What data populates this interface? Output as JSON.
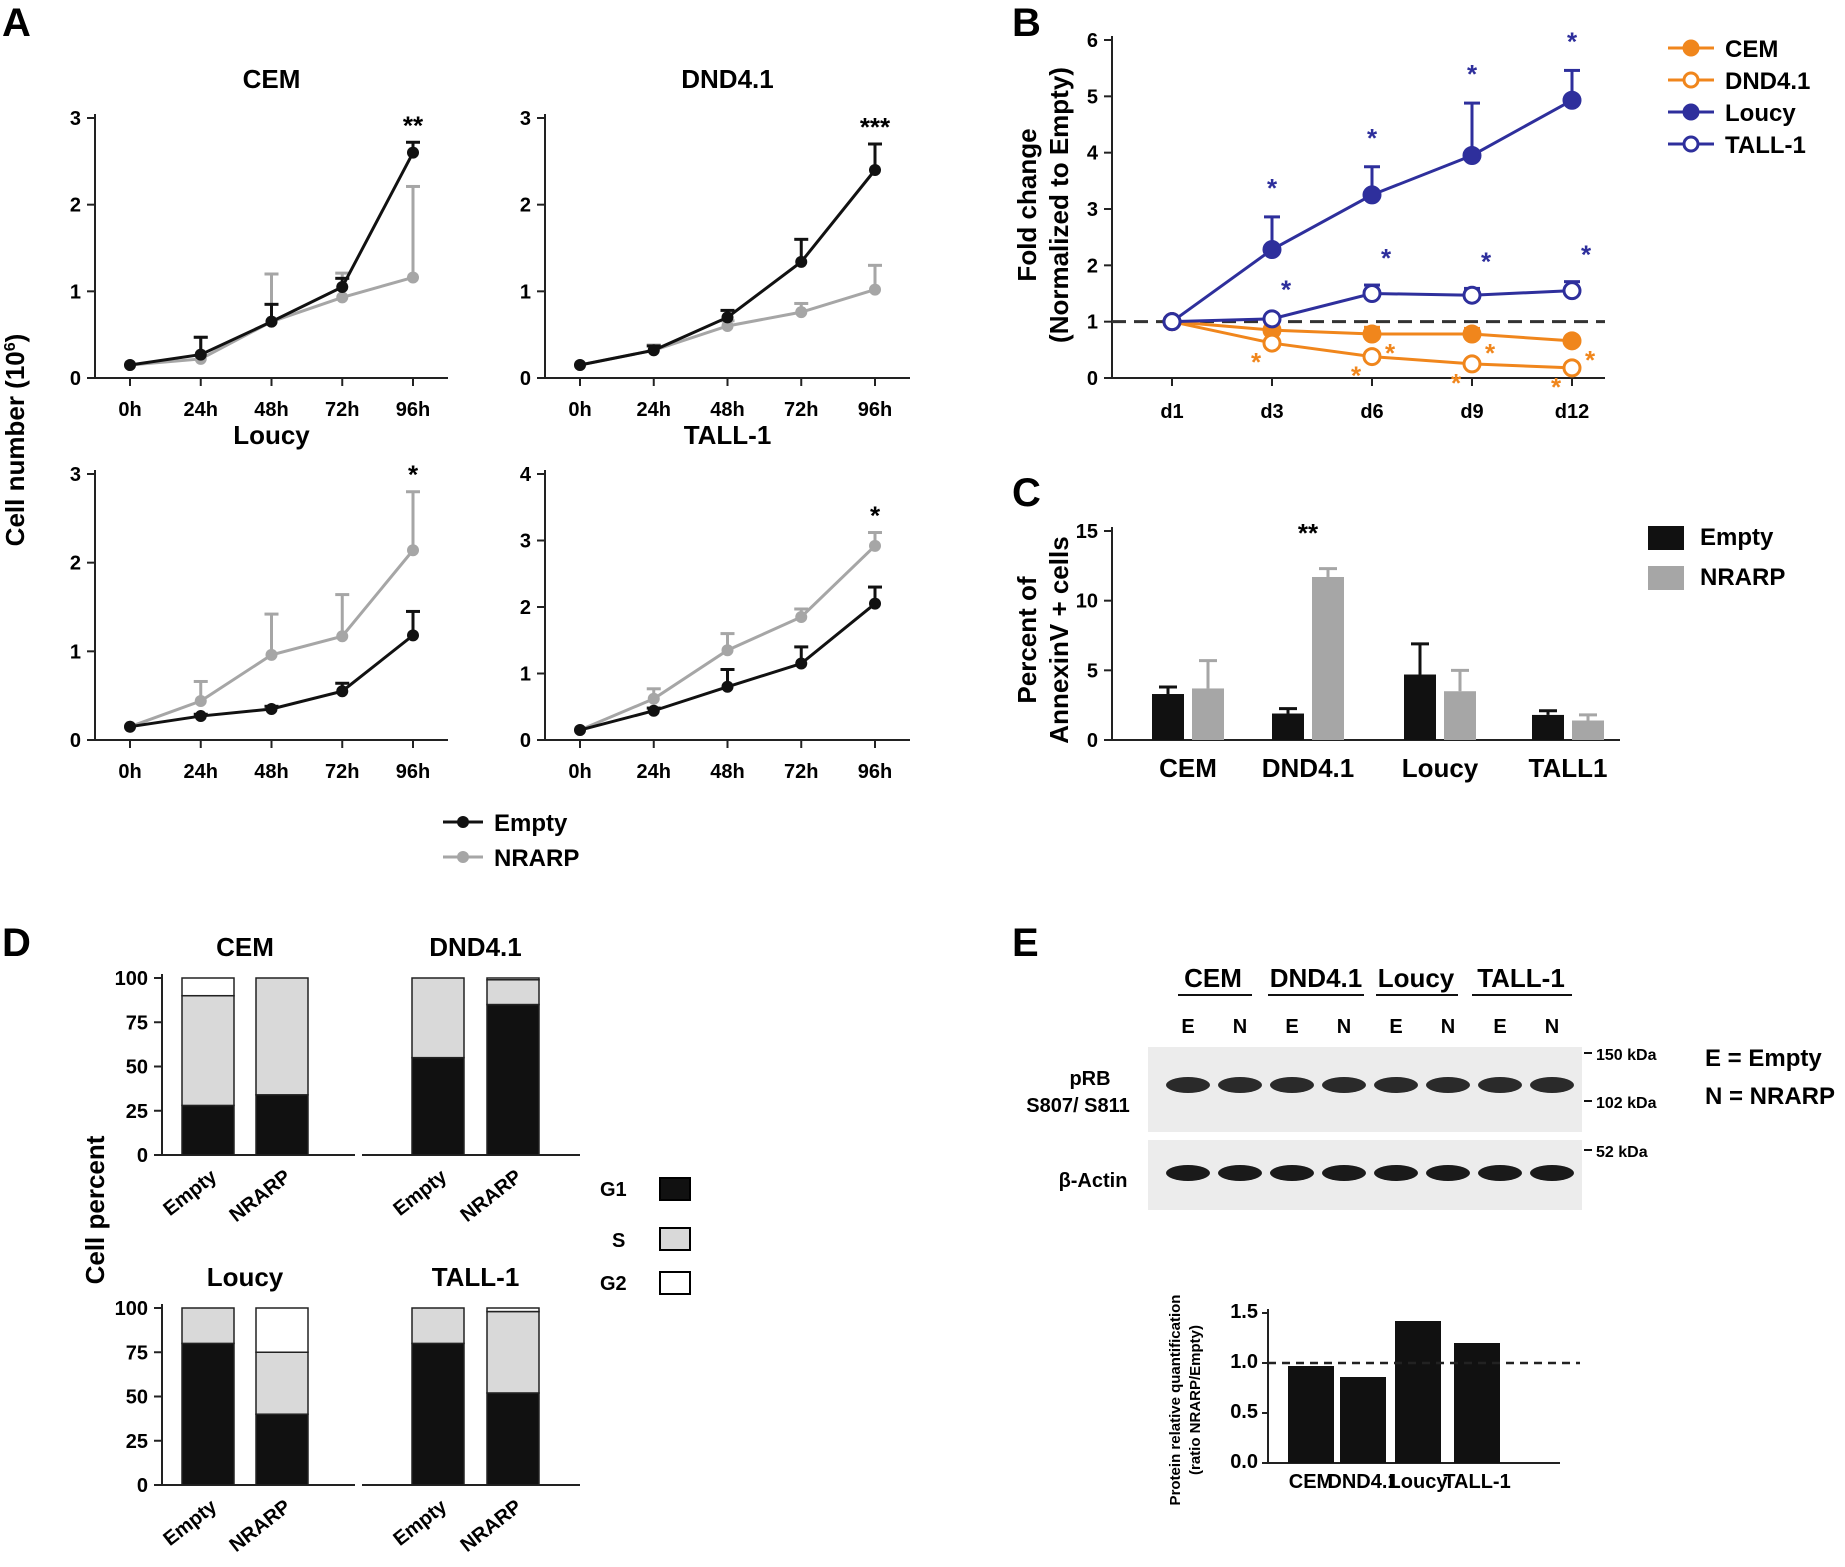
{
  "colors": {
    "empty": "#111111",
    "nrarp": "#a6a6a6",
    "orange": "#f0861c",
    "blue": "#2e2f9c",
    "g1": "#111111",
    "s": "#d9d9d9",
    "g2": "#ffffff"
  },
  "panel_labels": {
    "a": "A",
    "b": "B",
    "c": "C",
    "d": "D",
    "e": "E"
  },
  "panel_a": {
    "ylabel": "Cell number (10",
    "ylabel_sup": "6",
    "ylabel_close": ")",
    "legend": {
      "empty": "Empty",
      "nrarp": "NRARP"
    }
  },
  "panel_c": {
    "ylabel_line1": "Percent of",
    "ylabel_line2": "AnnexinV + cells",
    "legend": {
      "empty": "Empty",
      "nrarp": "NRARP"
    }
  },
  "panel_d": {
    "ylabel": "Cell percent",
    "legend": {
      "g1": "G1",
      "s": "S",
      "g2": "G2"
    }
  },
  "panel_e": {
    "headers": [
      "CEM",
      "DND4.1",
      "Loucy",
      "TALL-1"
    ],
    "lane_label": "E",
    "lane_label_n": "N",
    "row_prb_line1": "pRB",
    "row_prb_line2": "S807/ S811",
    "row_actin": "β-Actin",
    "markers": [
      "150 kDa",
      "102 kDa",
      "52 kDa"
    ],
    "key_e": "E = Empty",
    "key_n": "N = NRARP"
  },
  "chart_data": [
    {
      "panel": "A",
      "type": "line",
      "title": "CEM",
      "categories": [
        "0h",
        "24h",
        "48h",
        "72h",
        "96h"
      ],
      "ylim": [
        0,
        3
      ],
      "yticks": [
        0,
        1,
        2,
        3
      ],
      "series": [
        {
          "name": "Empty",
          "values": [
            0.15,
            0.27,
            0.65,
            1.05,
            2.6
          ],
          "errors": [
            0.0,
            0.2,
            0.2,
            0.1,
            0.12
          ]
        },
        {
          "name": "NRARP",
          "values": [
            0.15,
            0.22,
            0.65,
            0.93,
            1.16
          ],
          "errors": [
            0.0,
            0.25,
            0.55,
            0.28,
            1.05
          ]
        }
      ],
      "annotations": [
        {
          "at": "96h",
          "text": "**"
        }
      ]
    },
    {
      "panel": "A",
      "type": "line",
      "title": "DND4.1",
      "categories": [
        "0h",
        "24h",
        "48h",
        "72h",
        "96h"
      ],
      "ylim": [
        0,
        3
      ],
      "yticks": [
        0,
        1,
        2,
        3
      ],
      "series": [
        {
          "name": "Empty",
          "values": [
            0.15,
            0.32,
            0.7,
            1.34,
            2.4
          ],
          "errors": [
            0.0,
            0.05,
            0.08,
            0.26,
            0.3
          ]
        },
        {
          "name": "NRARP",
          "values": [
            0.15,
            0.32,
            0.6,
            0.76,
            1.02
          ],
          "errors": [
            0.0,
            0.06,
            0.06,
            0.1,
            0.28
          ]
        }
      ],
      "annotations": [
        {
          "at": "96h",
          "text": "***"
        }
      ]
    },
    {
      "panel": "A",
      "type": "line",
      "title": "Loucy",
      "categories": [
        "0h",
        "24h",
        "48h",
        "72h",
        "96h"
      ],
      "ylim": [
        0,
        3
      ],
      "yticks": [
        0,
        1,
        2,
        3
      ],
      "series": [
        {
          "name": "Empty",
          "values": [
            0.15,
            0.27,
            0.35,
            0.55,
            1.18
          ],
          "errors": [
            0.0,
            0.02,
            0.03,
            0.09,
            0.27
          ]
        },
        {
          "name": "NRARP",
          "values": [
            0.15,
            0.44,
            0.96,
            1.17,
            2.14
          ],
          "errors": [
            0.0,
            0.22,
            0.46,
            0.47,
            0.66
          ]
        }
      ],
      "annotations": [
        {
          "at": "96h",
          "text": "*"
        }
      ]
    },
    {
      "panel": "A",
      "type": "line",
      "title": "TALL-1",
      "categories": [
        "0h",
        "24h",
        "48h",
        "72h",
        "96h"
      ],
      "ylim": [
        0,
        4
      ],
      "yticks": [
        0,
        1,
        2,
        3,
        4
      ],
      "series": [
        {
          "name": "Empty",
          "values": [
            0.15,
            0.44,
            0.8,
            1.15,
            2.05
          ],
          "errors": [
            0.0,
            0.04,
            0.26,
            0.25,
            0.25
          ]
        },
        {
          "name": "NRARP",
          "values": [
            0.15,
            0.62,
            1.35,
            1.85,
            2.92
          ],
          "errors": [
            0.0,
            0.15,
            0.25,
            0.12,
            0.2
          ]
        }
      ],
      "annotations": [
        {
          "at": "96h",
          "text": "*"
        }
      ]
    },
    {
      "panel": "B",
      "type": "line",
      "ylabel_line1": "Fold change",
      "ylabel_line2": "(Normalized to Empty)",
      "categories": [
        "d1",
        "d3",
        "d6",
        "d9",
        "d12"
      ],
      "ylim": [
        0,
        6
      ],
      "yticks": [
        0,
        1,
        2,
        3,
        4,
        5,
        6
      ],
      "reference_line": 1,
      "series": [
        {
          "name": "CEM",
          "color": "orange",
          "filled": true,
          "values": [
            1.0,
            0.85,
            0.78,
            0.78,
            0.66
          ],
          "errors": [
            0.0,
            0.08,
            0.12,
            0.1,
            0.04
          ]
        },
        {
          "name": "DND4.1",
          "color": "orange",
          "filled": false,
          "values": [
            1.0,
            0.62,
            0.38,
            0.25,
            0.18
          ],
          "errors": [
            0.0,
            0.05,
            0.04,
            0.03,
            0.03
          ]
        },
        {
          "name": "Loucy",
          "color": "blue",
          "filled": true,
          "values": [
            1.0,
            2.28,
            3.25,
            3.95,
            4.93
          ],
          "errors": [
            0.0,
            0.58,
            0.5,
            0.93,
            0.53
          ]
        },
        {
          "name": "TALL-1",
          "color": "blue",
          "filled": false,
          "values": [
            1.0,
            1.05,
            1.5,
            1.47,
            1.55
          ],
          "errors": [
            0.0,
            0.04,
            0.15,
            0.12,
            0.16
          ]
        }
      ],
      "annotations": [
        {
          "at": "d3",
          "series": "Loucy",
          "text": "*"
        },
        {
          "at": "d6",
          "series": "Loucy",
          "text": "*"
        },
        {
          "at": "d9",
          "series": "Loucy",
          "text": "*"
        },
        {
          "at": "d12",
          "series": "Loucy",
          "text": "*"
        },
        {
          "at": "d3",
          "series": "TALL-1",
          "text": "*"
        },
        {
          "at": "d6",
          "series": "TALL-1",
          "text": "*"
        },
        {
          "at": "d9",
          "series": "TALL-1",
          "text": "*"
        },
        {
          "at": "d12",
          "series": "TALL-1",
          "text": "*"
        },
        {
          "at": "d3",
          "series": "DND4.1",
          "text": "*"
        },
        {
          "at": "d6",
          "series": "CEM",
          "text": "*"
        },
        {
          "at": "d6",
          "series": "DND4.1",
          "text": "*"
        },
        {
          "at": "d9",
          "series": "CEM",
          "text": "*"
        },
        {
          "at": "d9",
          "series": "DND4.1",
          "text": "*"
        },
        {
          "at": "d12",
          "series": "CEM",
          "text": "*"
        },
        {
          "at": "d12",
          "series": "DND4.1",
          "text": "*"
        }
      ]
    },
    {
      "panel": "C",
      "type": "bar",
      "categories": [
        "CEM",
        "DND4.1",
        "Loucy",
        "TALL1"
      ],
      "ylim": [
        0,
        15
      ],
      "yticks": [
        0,
        5,
        10,
        15
      ],
      "series": [
        {
          "name": "Empty",
          "values": [
            3.3,
            1.9,
            4.7,
            1.8
          ],
          "errors": [
            0.5,
            0.35,
            2.2,
            0.3
          ]
        },
        {
          "name": "NRARP",
          "values": [
            3.7,
            11.7,
            3.5,
            1.4
          ],
          "errors": [
            2.0,
            0.6,
            1.5,
            0.4
          ]
        }
      ],
      "annotations": [
        {
          "at": "DND4.1",
          "text": "**"
        }
      ]
    },
    {
      "panel": "D",
      "type": "bar",
      "stacked": true,
      "title": "CEM",
      "categories": [
        "Empty",
        "NRARP"
      ],
      "ylim": [
        0,
        100
      ],
      "yticks": [
        0,
        25,
        50,
        75,
        100
      ],
      "series": [
        {
          "name": "G1",
          "values": [
            28,
            34
          ]
        },
        {
          "name": "S",
          "values": [
            62,
            66
          ]
        },
        {
          "name": "G2",
          "values": [
            10,
            0
          ]
        }
      ]
    },
    {
      "panel": "D",
      "type": "bar",
      "stacked": true,
      "title": "DND4.1",
      "categories": [
        "Empty",
        "NRARP"
      ],
      "ylim": [
        0,
        100
      ],
      "yticks": [
        0,
        25,
        50,
        75,
        100
      ],
      "series": [
        {
          "name": "G1",
          "values": [
            55,
            85
          ]
        },
        {
          "name": "S",
          "values": [
            45,
            14
          ]
        },
        {
          "name": "G2",
          "values": [
            0,
            1
          ]
        }
      ]
    },
    {
      "panel": "D",
      "type": "bar",
      "stacked": true,
      "title": "Loucy",
      "categories": [
        "Empty",
        "NRARP"
      ],
      "ylim": [
        0,
        100
      ],
      "yticks": [
        0,
        25,
        50,
        75,
        100
      ],
      "series": [
        {
          "name": "G1",
          "values": [
            80,
            40
          ]
        },
        {
          "name": "S",
          "values": [
            20,
            35
          ]
        },
        {
          "name": "G2",
          "values": [
            0,
            25
          ]
        }
      ]
    },
    {
      "panel": "D",
      "type": "bar",
      "stacked": true,
      "title": "TALL-1",
      "categories": [
        "Empty",
        "NRARP"
      ],
      "ylim": [
        0,
        100
      ],
      "yticks": [
        0,
        25,
        50,
        75,
        100
      ],
      "series": [
        {
          "name": "G1",
          "values": [
            80,
            52
          ]
        },
        {
          "name": "S",
          "values": [
            20,
            46
          ]
        },
        {
          "name": "G2",
          "values": [
            0,
            2
          ]
        }
      ]
    },
    {
      "panel": "E",
      "type": "bar",
      "ylabel_line1": "Protein relative quantification",
      "ylabel_line2": "(ratio NRARP/Empty)",
      "categories": [
        "CEM",
        "DND4.1",
        "Loucy",
        "TALL-1"
      ],
      "values": [
        0.97,
        0.86,
        1.42,
        1.2
      ],
      "ylim": [
        0,
        1.5
      ],
      "yticks": [
        "0.0",
        "0.5",
        "1.0",
        "1.5"
      ],
      "reference_line": 1.0
    }
  ]
}
